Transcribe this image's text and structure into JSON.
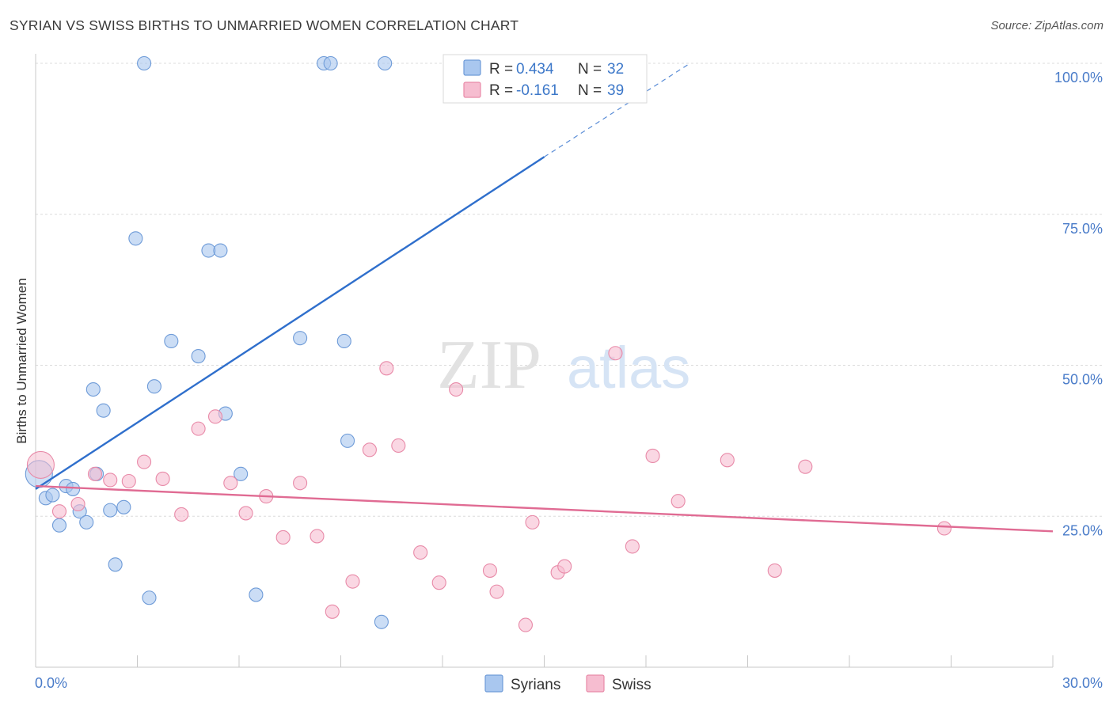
{
  "chart_data": {
    "type": "scatter",
    "title": "SYRIAN VS SWISS BIRTHS TO UNMARRIED WOMEN CORRELATION CHART",
    "source": "Source: ZipAtlas.com",
    "ylabel": "Births to Unmarried Women",
    "xlabel": "",
    "xlim": [
      0,
      30
    ],
    "ylim": [
      0,
      100
    ],
    "x_tick_labels": [
      "0.0%",
      "30.0%"
    ],
    "y_ticks": [
      25,
      50,
      75,
      100
    ],
    "y_tick_labels": [
      "25.0%",
      "50.0%",
      "75.0%",
      "100.0%"
    ],
    "watermark": {
      "zip": "ZIP",
      "atlas": "atlas"
    },
    "legend": [
      {
        "r_label": "R = ",
        "r_value": "0.434",
        "n_label": "N = ",
        "n_value": "32",
        "color": "#a9c7ef",
        "stroke": "#6e9bd8"
      },
      {
        "r_label": "R = ",
        "r_value": "-0.161",
        "n_label": "N = ",
        "n_value": "39",
        "color": "#f6bdd0",
        "stroke": "#e88aa8"
      }
    ],
    "series": [
      {
        "name": "Syrians",
        "color": "#a9c7ef",
        "stroke": "#6e9bd8",
        "trend_color": "#2f6fcc",
        "trend": {
          "x0": 0,
          "y0": 29.5,
          "x1": 15.0,
          "y1": 84.5,
          "dash_x1": 19.3,
          "dash_y1": 100
        },
        "points": [
          {
            "x": 0.1,
            "y": 32,
            "big": true
          },
          {
            "x": 0.3,
            "y": 28
          },
          {
            "x": 0.5,
            "y": 28.5
          },
          {
            "x": 0.7,
            "y": 23.5
          },
          {
            "x": 0.9,
            "y": 30
          },
          {
            "x": 1.1,
            "y": 29.5
          },
          {
            "x": 1.3,
            "y": 25.8
          },
          {
            "x": 1.5,
            "y": 24
          },
          {
            "x": 1.7,
            "y": 46
          },
          {
            "x": 1.8,
            "y": 32
          },
          {
            "x": 2.0,
            "y": 42.5
          },
          {
            "x": 2.2,
            "y": 26
          },
          {
            "x": 2.35,
            "y": 17
          },
          {
            "x": 2.6,
            "y": 26.5
          },
          {
            "x": 2.95,
            "y": 71
          },
          {
            "x": 3.2,
            "y": 100
          },
          {
            "x": 3.35,
            "y": 11.5
          },
          {
            "x": 3.5,
            "y": 46.5
          },
          {
            "x": 4.0,
            "y": 54
          },
          {
            "x": 4.8,
            "y": 51.5
          },
          {
            "x": 5.1,
            "y": 69
          },
          {
            "x": 5.45,
            "y": 69
          },
          {
            "x": 5.6,
            "y": 42
          },
          {
            "x": 6.05,
            "y": 32
          },
          {
            "x": 6.5,
            "y": 12
          },
          {
            "x": 7.8,
            "y": 54.5
          },
          {
            "x": 8.5,
            "y": 100
          },
          {
            "x": 8.7,
            "y": 100
          },
          {
            "x": 9.1,
            "y": 54
          },
          {
            "x": 9.2,
            "y": 37.5
          },
          {
            "x": 10.2,
            "y": 7.5
          },
          {
            "x": 10.3,
            "y": 100
          }
        ]
      },
      {
        "name": "Swiss",
        "color": "#f6bdd0",
        "stroke": "#e88aa8",
        "trend_color": "#e06b93",
        "trend": {
          "x0": 0,
          "y0": 30,
          "x1": 30,
          "y1": 22.5
        },
        "points": [
          {
            "x": 0.15,
            "y": 33.5,
            "big": true
          },
          {
            "x": 0.7,
            "y": 25.8
          },
          {
            "x": 1.25,
            "y": 27
          },
          {
            "x": 1.75,
            "y": 32
          },
          {
            "x": 2.2,
            "y": 31
          },
          {
            "x": 2.75,
            "y": 30.8
          },
          {
            "x": 3.2,
            "y": 34
          },
          {
            "x": 3.75,
            "y": 31.2
          },
          {
            "x": 4.3,
            "y": 25.3
          },
          {
            "x": 4.8,
            "y": 39.5
          },
          {
            "x": 5.3,
            "y": 41.5
          },
          {
            "x": 5.75,
            "y": 30.5
          },
          {
            "x": 6.2,
            "y": 25.5
          },
          {
            "x": 6.8,
            "y": 28.3
          },
          {
            "x": 7.3,
            "y": 21.5
          },
          {
            "x": 7.8,
            "y": 30.5
          },
          {
            "x": 8.3,
            "y": 21.7
          },
          {
            "x": 8.75,
            "y": 9.2
          },
          {
            "x": 9.35,
            "y": 14.2
          },
          {
            "x": 9.85,
            "y": 36
          },
          {
            "x": 10.35,
            "y": 49.5
          },
          {
            "x": 10.7,
            "y": 36.7
          },
          {
            "x": 11.35,
            "y": 19
          },
          {
            "x": 11.9,
            "y": 14
          },
          {
            "x": 12.4,
            "y": 46
          },
          {
            "x": 13.4,
            "y": 16
          },
          {
            "x": 13.6,
            "y": 12.5
          },
          {
            "x": 14.45,
            "y": 7
          },
          {
            "x": 14.65,
            "y": 24
          },
          {
            "x": 15.4,
            "y": 15.7
          },
          {
            "x": 15.6,
            "y": 16.7
          },
          {
            "x": 17.1,
            "y": 52
          },
          {
            "x": 17.6,
            "y": 20
          },
          {
            "x": 18.2,
            "y": 35
          },
          {
            "x": 18.95,
            "y": 27.5
          },
          {
            "x": 20.4,
            "y": 34.3
          },
          {
            "x": 21.8,
            "y": 16
          },
          {
            "x": 22.7,
            "y": 33.2
          },
          {
            "x": 26.8,
            "y": 23
          }
        ]
      }
    ]
  }
}
